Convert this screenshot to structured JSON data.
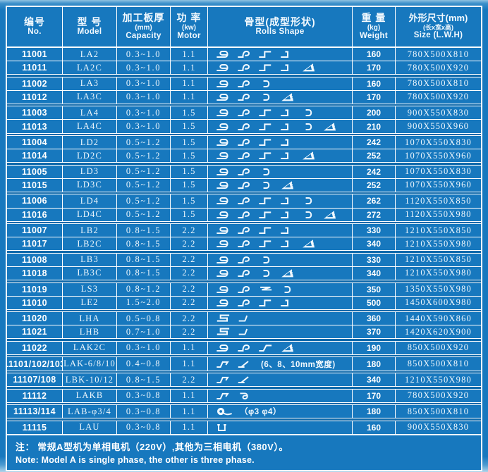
{
  "colors": {
    "table_blue": "#1778be",
    "separator_dark": "#0d68aa",
    "line_white": "#ffffff",
    "text_white": "#f2f9fe"
  },
  "header": {
    "cols": [
      {
        "zh": "编号",
        "en": "No."
      },
      {
        "zh": "型 号",
        "en": "Model"
      },
      {
        "zh": "加工板厚",
        "sub": "(mm)",
        "en": "Capacity"
      },
      {
        "zh": "功 率",
        "sub": "(kw)",
        "en": "Motor"
      },
      {
        "zh": "骨型(成型形状)",
        "en": "Rolls Shape"
      },
      {
        "zh": "重 量",
        "sub": "(kg)",
        "en": "Weight"
      },
      {
        "zh": "外形尺寸(mm)",
        "sub": "(长x宽x高)",
        "en": "Size (L.W.H)"
      }
    ]
  },
  "rows": [
    {
      "no": "11001",
      "model": "LA2",
      "capacity": "0.3~1.0",
      "motor": "1.1",
      "shapes": [
        "s",
        "p",
        "step",
        "corner"
      ],
      "weight": "160",
      "size": "780X500X810"
    },
    {
      "no": "11011",
      "model": "LA2C",
      "capacity": "0.3~1.0",
      "motor": "1.1",
      "shapes": [
        "s",
        "p",
        "step",
        "corner",
        "tri"
      ],
      "weight": "170",
      "size": "780X500X920"
    },
    {
      "no": "11002",
      "model": "LA3",
      "capacity": "0.3~1.0",
      "motor": "1.1",
      "shapes": [
        "s",
        "p",
        "c"
      ],
      "weight": "160",
      "size": "780X500X810"
    },
    {
      "no": "11012",
      "model": "LA3C",
      "capacity": "0.3~1.0",
      "motor": "1.1",
      "shapes": [
        "s",
        "p",
        "c",
        "tri"
      ],
      "weight": "170",
      "size": "780X500X920"
    },
    {
      "no": "11003",
      "model": "LA4",
      "capacity": "0.3~1.0",
      "motor": "1.5",
      "shapes": [
        "s",
        "p",
        "step",
        "corner",
        "c"
      ],
      "weight": "200",
      "size": "900X550X830"
    },
    {
      "no": "11013",
      "model": "LA4C",
      "capacity": "0.3~1.0",
      "motor": "1.5",
      "shapes": [
        "s",
        "p",
        "step",
        "corner",
        "c",
        "tri"
      ],
      "weight": "210",
      "size": "900X550X960"
    },
    {
      "no": "11004",
      "model": "LD2",
      "capacity": "0.5~1.2",
      "motor": "1.5",
      "shapes": [
        "s",
        "p",
        "step",
        "corner"
      ],
      "weight": "242",
      "size": "1070X550X830"
    },
    {
      "no": "11014",
      "model": "LD2C",
      "capacity": "0.5~1.2",
      "motor": "1.5",
      "shapes": [
        "s",
        "p",
        "step",
        "corner",
        "tri"
      ],
      "weight": "252",
      "size": "1070X550X960"
    },
    {
      "no": "11005",
      "model": "LD3",
      "capacity": "0.5~1.2",
      "motor": "1.5",
      "shapes": [
        "s",
        "p",
        "c"
      ],
      "weight": "242",
      "size": "1070X550X830"
    },
    {
      "no": "11015",
      "model": "LD3C",
      "capacity": "0.5~1.2",
      "motor": "1.5",
      "shapes": [
        "s",
        "p",
        "c",
        "tri"
      ],
      "weight": "252",
      "size": "1070X550X960"
    },
    {
      "no": "11006",
      "model": "LD4",
      "capacity": "0.5~1.2",
      "motor": "1.5",
      "shapes": [
        "s",
        "p",
        "step",
        "corner",
        "c"
      ],
      "weight": "262",
      "size": "1120X550X850"
    },
    {
      "no": "11016",
      "model": "LD4C",
      "capacity": "0.5~1.2",
      "motor": "1.5",
      "shapes": [
        "s",
        "p",
        "step",
        "corner",
        "c",
        "tri"
      ],
      "weight": "272",
      "size": "1120X550X980"
    },
    {
      "no": "11007",
      "model": "LB2",
      "capacity": "0.8~1.5",
      "motor": "2.2",
      "shapes": [
        "s",
        "p",
        "step",
        "corner"
      ],
      "weight": "330",
      "size": "1210X550X850"
    },
    {
      "no": "11017",
      "model": "LB2C",
      "capacity": "0.8~1.5",
      "motor": "2.2",
      "shapes": [
        "s",
        "p",
        "step",
        "corner",
        "tri"
      ],
      "weight": "340",
      "size": "1210X550X980"
    },
    {
      "no": "11008",
      "model": "LB3",
      "capacity": "0.8~1.5",
      "motor": "2.2",
      "shapes": [
        "s",
        "p",
        "c"
      ],
      "weight": "330",
      "size": "1210X550X850"
    },
    {
      "no": "11018",
      "model": "LB3C",
      "capacity": "0.8~1.5",
      "motor": "2.2",
      "shapes": [
        "s",
        "p",
        "c",
        "tri"
      ],
      "weight": "340",
      "size": "1210X550X980"
    },
    {
      "no": "11019",
      "model": "LS3",
      "capacity": "0.8~1.2",
      "motor": "2.2",
      "shapes": [
        "s",
        "p",
        "zsharp",
        "c"
      ],
      "weight": "350",
      "size": "1350X550X980"
    },
    {
      "no": "11010",
      "model": "LE2",
      "capacity": "1.5~2.0",
      "motor": "2.2",
      "shapes": [
        "s",
        "p",
        "step",
        "corner"
      ],
      "weight": "500",
      "size": "1450X600X980"
    },
    {
      "no": "11020",
      "model": "LHA",
      "capacity": "0.5~0.8",
      "motor": "2.2",
      "shapes": [
        "fold5",
        "corner2"
      ],
      "weight": "360",
      "size": "1440X590X860"
    },
    {
      "no": "11021",
      "model": "LHB",
      "capacity": "0.7~1.0",
      "motor": "2.2",
      "shapes": [
        "fold5",
        "corner2"
      ],
      "weight": "370",
      "size": "1420X620X900"
    },
    {
      "no": "11022",
      "model": "LAK2C",
      "capacity": "0.3~1.0",
      "motor": "1.1",
      "shapes": [
        "s",
        "p",
        "zslant",
        "tri"
      ],
      "weight": "190",
      "size": "850X500X920"
    },
    {
      "no": "11101/102/103",
      "model": "LAK-6/8/10",
      "capacity": "0.4~0.8",
      "motor": "1.1",
      "shapes": [
        "stepz",
        "angle"
      ],
      "shape_note": "(6、8、10mm宽度)",
      "weight": "180",
      "size": "850X500X810"
    },
    {
      "no": "11107/108",
      "model": "LBK-10/12",
      "capacity": "0.8~1.5",
      "motor": "2.2",
      "shapes": [
        "stepz",
        "angle"
      ],
      "weight": "340",
      "size": "1210X550X980"
    },
    {
      "no": "11112",
      "model": "LAKB",
      "capacity": "0.3~0.8",
      "motor": "1.1",
      "shapes": [
        "stepz",
        "hook9"
      ],
      "weight": "170",
      "size": "780X500X920"
    },
    {
      "no": "11113/114",
      "model": "LAB-φ3/4",
      "capacity": "0.3~0.8",
      "motor": "1.1",
      "shapes": [
        "wire"
      ],
      "shape_note": "（φ3 φ4）",
      "weight": "180",
      "size": "850X500X810"
    },
    {
      "no": "11115",
      "model": "LAU",
      "capacity": "0.3~0.8",
      "motor": "1.1",
      "shapes": [
        "uchannel"
      ],
      "weight": "160",
      "size": "900X550X830"
    }
  ],
  "footer": {
    "zh": "注： 常规A型机为单相电机（220V）,其他为三相电机（380V）。",
    "en": "Note: Model A  is single phase, the other is three phase."
  }
}
